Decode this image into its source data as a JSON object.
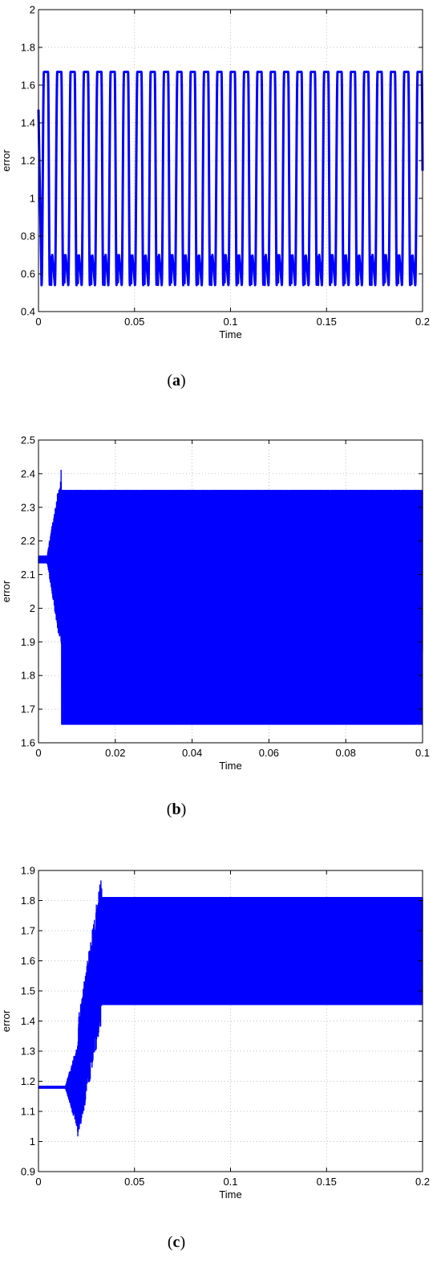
{
  "chart_data": [
    {
      "id": "a",
      "type": "line",
      "caption_letter": "a",
      "xlabel": "Time",
      "ylabel": "error",
      "xlim": [
        0,
        0.2
      ],
      "ylim": [
        0.4,
        2
      ],
      "xticks": [
        0,
        0.05,
        0.1,
        0.15,
        0.2
      ],
      "xtick_labels": [
        "0",
        "0.05",
        "0.1",
        "0.15",
        "0.2"
      ],
      "yticks": [
        0.4,
        0.6,
        0.8,
        1,
        1.2,
        1.4,
        1.6,
        1.8,
        2
      ],
      "ytick_labels": [
        "0.4",
        "0.6",
        "0.8",
        "1",
        "1.2",
        "1.4",
        "1.6",
        "1.8",
        "2"
      ],
      "grid": true,
      "series": [
        {
          "color": "#0000ff",
          "pattern": "periodic",
          "start_value": 1.47,
          "period": 0.00695,
          "max": 1.67,
          "min": 0.54,
          "secondary_dip": 0.7
        }
      ]
    },
    {
      "id": "b",
      "type": "line",
      "caption_letter": "b",
      "xlabel": "Time",
      "ylabel": "error",
      "xlim": [
        0,
        0.1
      ],
      "ylim": [
        1.6,
        2.5
      ],
      "xticks": [
        0,
        0.02,
        0.04,
        0.06,
        0.08,
        0.1
      ],
      "xtick_labels": [
        "0",
        "0.02",
        "0.04",
        "0.06",
        "0.08",
        "0.1"
      ],
      "yticks": [
        1.6,
        1.7,
        1.8,
        1.9,
        2,
        2.1,
        2.2,
        2.3,
        2.4,
        2.5
      ],
      "ytick_labels": [
        "1.6",
        "1.7",
        "1.8",
        "1.9",
        "2",
        "2.1",
        "2.2",
        "2.3",
        "2.4",
        "2.5"
      ],
      "grid": true,
      "series": [
        {
          "color": "#0000ff",
          "pattern": "dense-oscillation",
          "initial_value": 2.145,
          "transient_end": 0.006,
          "max": 2.35,
          "min": 1.655,
          "inner_max": 2.15,
          "inner_min": 1.87
        }
      ]
    },
    {
      "id": "c",
      "type": "line",
      "caption_letter": "c",
      "xlabel": "Time",
      "ylabel": "error",
      "xlim": [
        0,
        0.2
      ],
      "ylim": [
        0.9,
        1.9
      ],
      "xticks": [
        0,
        0.05,
        0.1,
        0.15,
        0.2
      ],
      "xtick_labels": [
        "0",
        "0.05",
        "0.1",
        "0.15",
        "0.2"
      ],
      "yticks": [
        0.9,
        1,
        1.1,
        1.2,
        1.3,
        1.4,
        1.5,
        1.6,
        1.7,
        1.8,
        1.9
      ],
      "ytick_labels": [
        "0.9",
        "1",
        "1.1",
        "1.2",
        "1.3",
        "1.4",
        "1.5",
        "1.6",
        "1.7",
        "1.8",
        "1.9"
      ],
      "grid": true,
      "series": [
        {
          "color": "#0000ff",
          "pattern": "dense-oscillation",
          "initial_value": 1.18,
          "transient_end": 0.033,
          "max": 1.81,
          "min": 1.455,
          "transient_min": 1.0
        }
      ]
    }
  ]
}
